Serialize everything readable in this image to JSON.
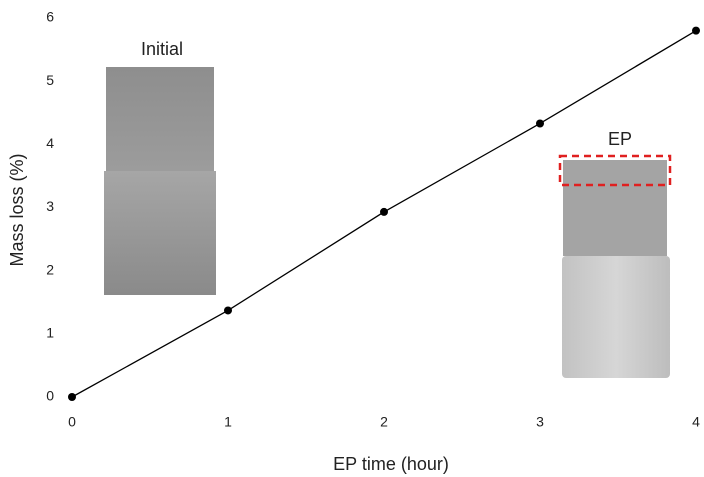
{
  "chart_data": {
    "type": "line",
    "x": [
      0,
      1,
      2,
      3,
      4
    ],
    "values": [
      0,
      1.37,
      2.93,
      4.33,
      5.8
    ],
    "color": "#000000",
    "xlabel": "EP time (hour)",
    "ylabel": "Mass loss (%)",
    "xlim": [
      0,
      4
    ],
    "xticks": [
      0,
      1,
      2,
      3,
      4
    ],
    "ylim": [
      0,
      6
    ],
    "yticks": [
      0,
      1,
      2,
      3,
      4,
      5,
      6
    ],
    "grid": false,
    "annotations": [
      "Initial",
      "EP"
    ]
  }
}
